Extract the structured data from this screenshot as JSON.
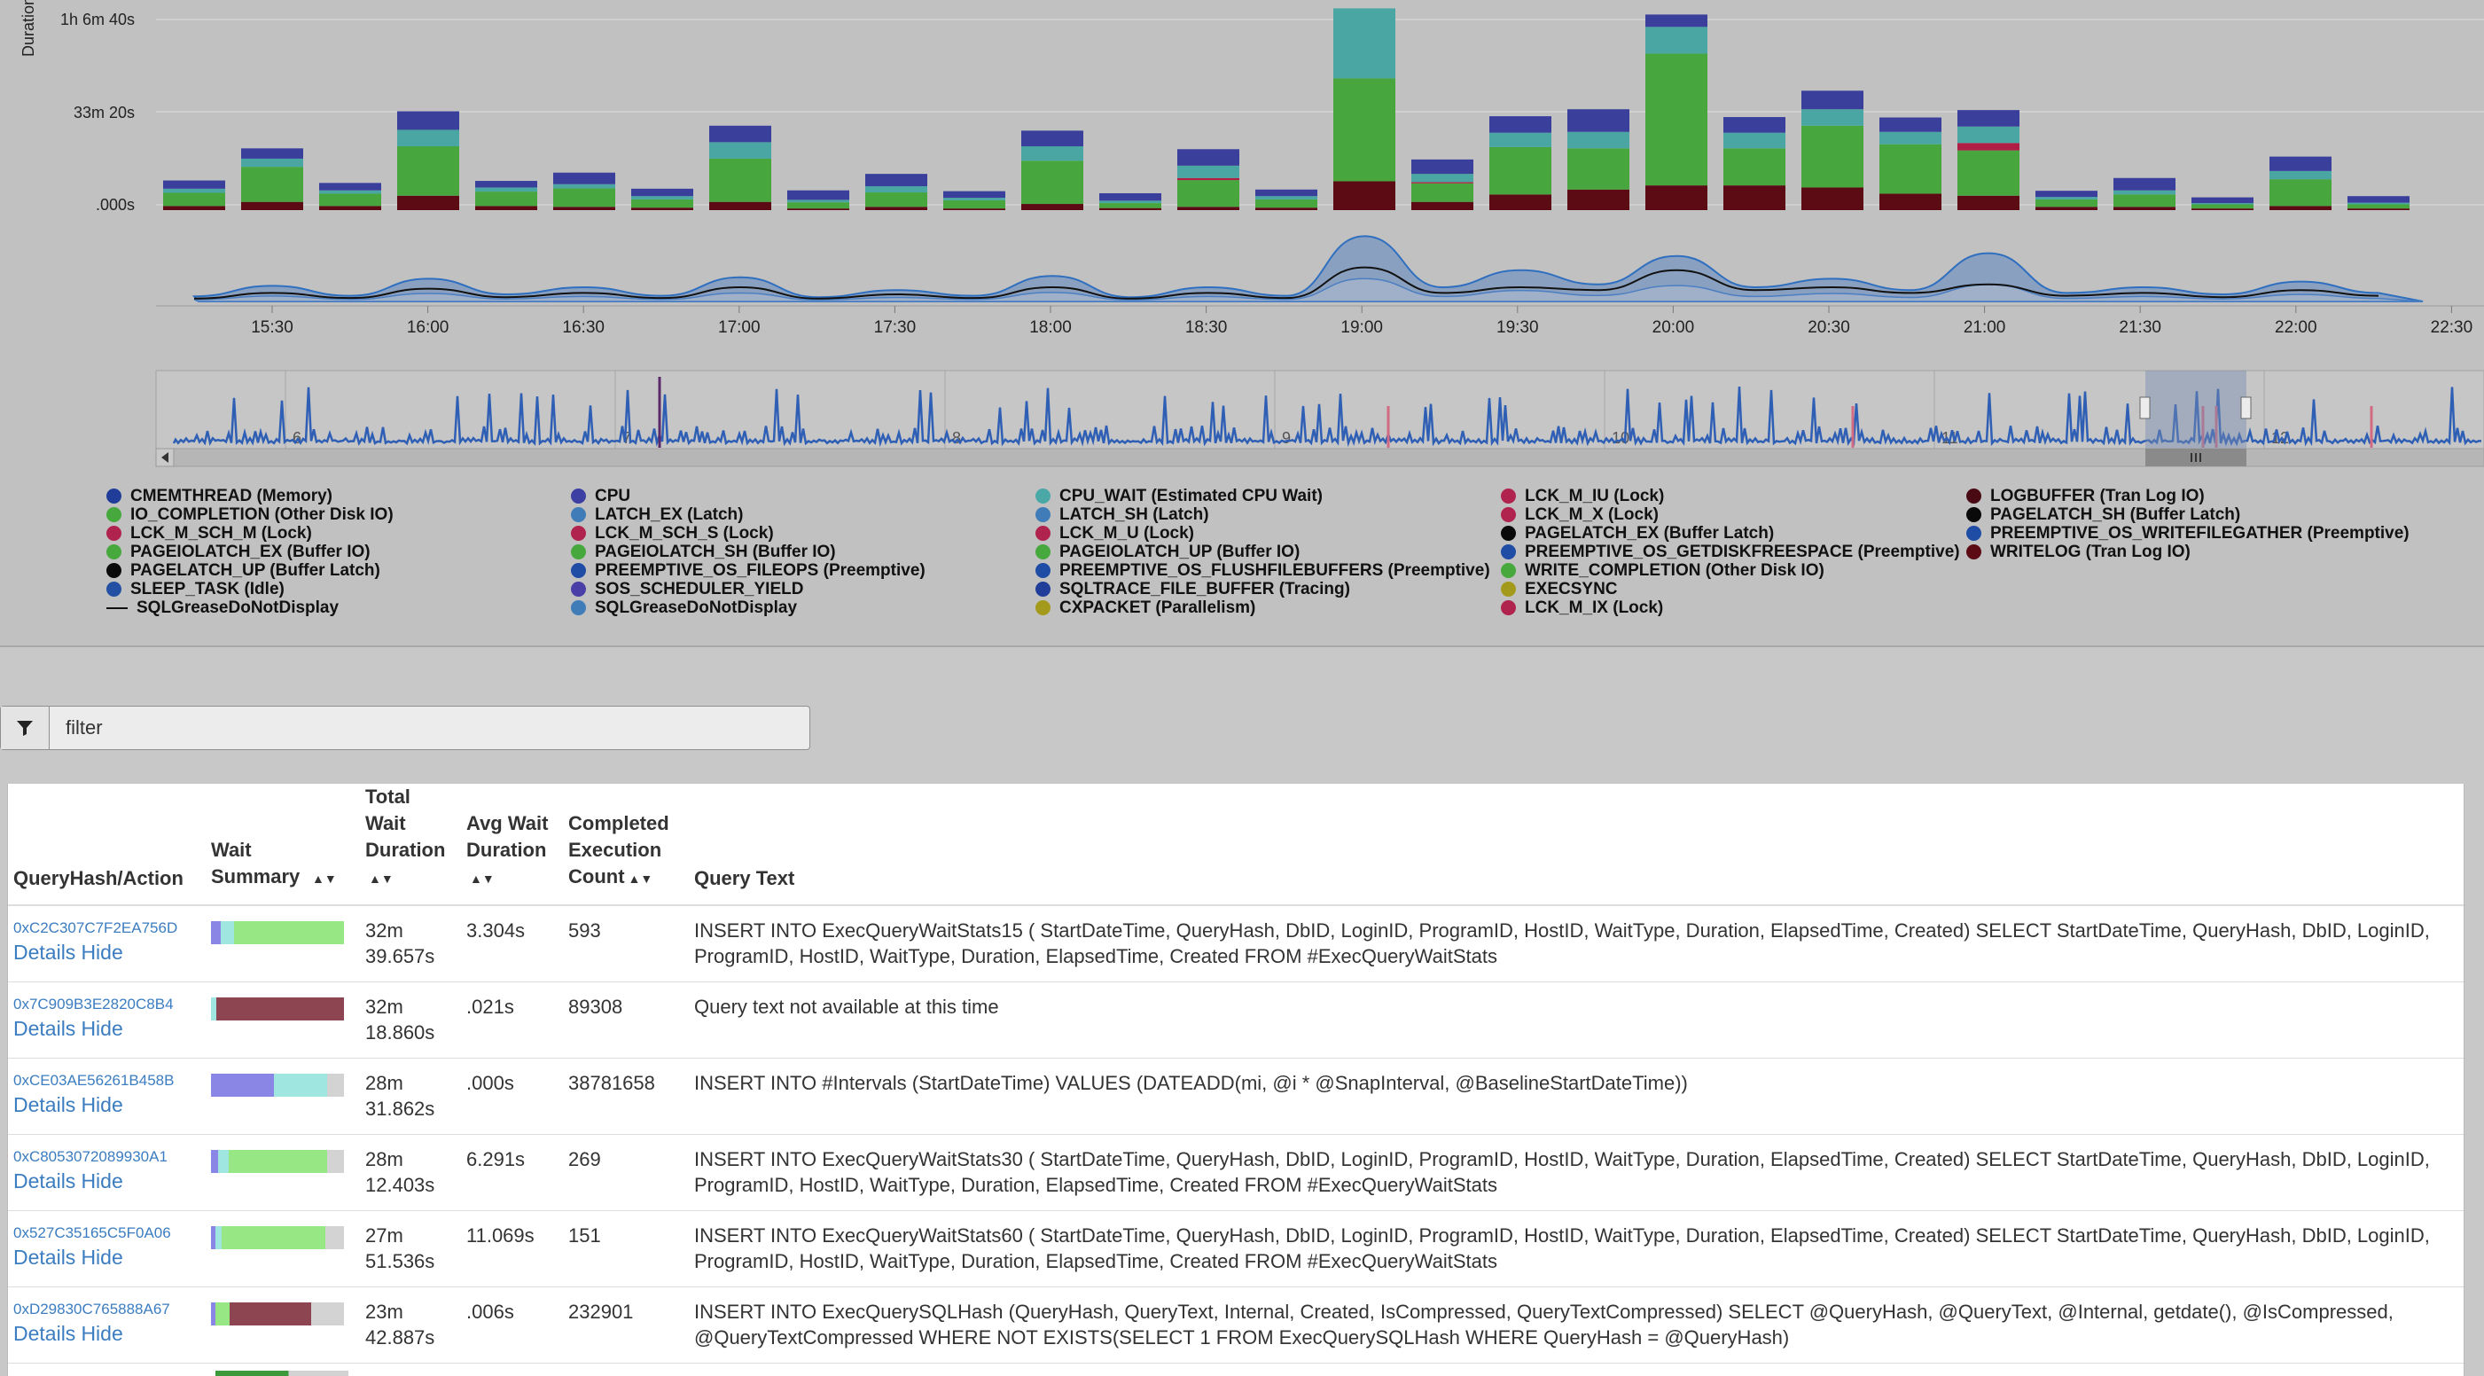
{
  "chart": {
    "y_axis_label": "Duration",
    "y_tick_labels": [
      "1h 6m 40s",
      "33m 20s",
      ".000s"
    ],
    "x_tick_labels": [
      "15:30",
      "16:00",
      "16:30",
      "17:00",
      "17:30",
      "18:00",
      "18:30",
      "19:00",
      "19:30",
      "20:00",
      "20:30",
      "21:00",
      "21:30",
      "22:00",
      "22:30"
    ],
    "navigator_labels": [
      "6",
      "7",
      "8",
      "9",
      "10",
      "11",
      "12"
    ]
  },
  "chart_data": {
    "type": "bar",
    "stacked": true,
    "x_unit": "minutes since 15:30",
    "categories": [
      "15:10",
      "15:25",
      "15:40",
      "15:55",
      "16:10",
      "16:25",
      "16:40",
      "16:55",
      "17:10",
      "17:25",
      "17:40",
      "17:55",
      "18:10",
      "18:25",
      "18:40",
      "18:55",
      "19:10",
      "19:25",
      "19:40",
      "19:55",
      "20:10",
      "20:25",
      "20:40",
      "20:55",
      "21:10",
      "21:25",
      "21:40",
      "21:55",
      "22:10"
    ],
    "ylabel": "Duration",
    "ylim_seconds": [
      0,
      4500
    ],
    "series": [
      {
        "name": "WRITELOG (Tran Log IO)",
        "color": "#5c0a14",
        "values": [
          100,
          200,
          100,
          350,
          100,
          80,
          60,
          200,
          40,
          80,
          40,
          150,
          50,
          80,
          60,
          700,
          200,
          380,
          500,
          600,
          600,
          550,
          400,
          350,
          80,
          80,
          40,
          100,
          40
        ]
      },
      {
        "name": "PAGEIOLATCH_SH (Buffer IO)",
        "color": "#47a63d",
        "values": [
          320,
          850,
          300,
          1200,
          350,
          450,
          200,
          1050,
          150,
          350,
          200,
          1050,
          120,
          650,
          200,
          2500,
          450,
          1150,
          1000,
          3200,
          900,
          1500,
          1200,
          1100,
          180,
          300,
          100,
          650,
          100
        ]
      },
      {
        "name": "LCK_M_X (Lock)",
        "color": "#b01e45",
        "values": [
          0,
          0,
          0,
          0,
          0,
          0,
          0,
          0,
          0,
          0,
          0,
          0,
          0,
          50,
          0,
          0,
          30,
          0,
          0,
          0,
          0,
          0,
          0,
          180,
          0,
          0,
          0,
          0,
          0
        ]
      },
      {
        "name": "CPU_WAIT (Estimated CPU Wait)",
        "color": "#4aa6a3",
        "values": [
          100,
          200,
          80,
          400,
          100,
          100,
          80,
          400,
          60,
          150,
          60,
          350,
          60,
          300,
          80,
          1700,
          200,
          350,
          400,
          650,
          380,
          400,
          300,
          400,
          60,
          100,
          30,
          200,
          40
        ]
      },
      {
        "name": "CPU",
        "color": "#3b3f9c",
        "values": [
          200,
          250,
          180,
          450,
          160,
          280,
          180,
          400,
          230,
          300,
          160,
          380,
          180,
          400,
          160,
          0,
          350,
          400,
          550,
          300,
          380,
          450,
          350,
          400,
          150,
          300,
          140,
          350,
          160
        ]
      }
    ],
    "area_series": [
      {
        "name": "envelope",
        "values": [
          0.18,
          0.55,
          0.2,
          0.8,
          0.25,
          0.5,
          0.2,
          0.85,
          0.15,
          0.4,
          0.2,
          0.9,
          0.15,
          0.5,
          0.2,
          2.3,
          0.5,
          1.1,
          0.6,
          1.6,
          0.5,
          0.8,
          0.4,
          1.7,
          0.3,
          0.5,
          0.25,
          0.7,
          0.3
        ]
      },
      {
        "name": "SQLGreaseDoNotDisplay",
        "values": [
          0.1,
          0.3,
          0.12,
          0.45,
          0.15,
          0.3,
          0.12,
          0.5,
          0.1,
          0.25,
          0.12,
          0.5,
          0.1,
          0.3,
          0.12,
          1.2,
          0.3,
          0.5,
          0.4,
          1.1,
          0.4,
          0.5,
          0.3,
          0.6,
          0.2,
          0.3,
          0.15,
          0.4,
          0.2
        ]
      }
    ]
  },
  "legend": [
    {
      "label": "CMEMTHREAD (Memory)",
      "color": "#1f3d99"
    },
    {
      "label": "IO_COMPLETION (Other Disk IO)",
      "color": "#46a83d"
    },
    {
      "label": "LCK_M_SCH_M (Lock)",
      "color": "#b0234f"
    },
    {
      "label": "PAGEIOLATCH_EX (Buffer IO)",
      "color": "#46a83d"
    },
    {
      "label": "PAGELATCH_UP (Buffer Latch)",
      "color": "#0a0a0a"
    },
    {
      "label": "SLEEP_TASK (Idle)",
      "color": "#2350a3"
    },
    {
      "label": "SQLGreaseDoNotDisplay",
      "color": "line"
    },
    {
      "label": "CPU",
      "color": "#3e3fa3"
    },
    {
      "label": "LATCH_EX (Latch)",
      "color": "#3f7cb8"
    },
    {
      "label": "LCK_M_SCH_S (Lock)",
      "color": "#b0234f"
    },
    {
      "label": "PAGEIOLATCH_SH (Buffer IO)",
      "color": "#46a83d"
    },
    {
      "label": "PREEMPTIVE_OS_FILEOPS (Preemptive)",
      "color": "#1f4da6"
    },
    {
      "label": "SOS_SCHEDULER_YIELD",
      "color": "#4a3fa6"
    },
    {
      "label": "SQLGreaseDoNotDisplay",
      "color": "#3f7cb8"
    },
    {
      "label": "CPU_WAIT (Estimated CPU Wait)",
      "color": "#4aa8a6"
    },
    {
      "label": "LATCH_SH (Latch)",
      "color": "#3f7cb8"
    },
    {
      "label": "LCK_M_U (Lock)",
      "color": "#b0234f"
    },
    {
      "label": "PAGEIOLATCH_UP (Buffer IO)",
      "color": "#46a83d"
    },
    {
      "label": "PREEMPTIVE_OS_FLUSHFILEBUFFERS (Preemptive)",
      "color": "#1f4da6"
    },
    {
      "label": "SQLTRACE_FILE_BUFFER (Tracing)",
      "color": "#1f3d99"
    },
    {
      "label": "CXPACKET (Parallelism)",
      "color": "#a39a1c"
    },
    {
      "label": "LCK_M_IU (Lock)",
      "color": "#b0234f"
    },
    {
      "label": "LCK_M_X (Lock)",
      "color": "#b0234f"
    },
    {
      "label": "PAGELATCH_EX (Buffer Latch)",
      "color": "#0a0a0a"
    },
    {
      "label": "PREEMPTIVE_OS_GETDISKFREESPACE (Preemptive)",
      "color": "#1f4da6"
    },
    {
      "label": "WRITE_COMPLETION (Other Disk IO)",
      "color": "#46a83d"
    },
    {
      "label": "EXECSYNC",
      "color": "#a39a1c"
    },
    {
      "label": "LCK_M_IX (Lock)",
      "color": "#b0234f"
    },
    {
      "label": "LOGBUFFER (Tran Log IO)",
      "color": "#4a0a14"
    },
    {
      "label": "PAGELATCH_SH (Buffer Latch)",
      "color": "#0a0a0a"
    },
    {
      "label": "PREEMPTIVE_OS_WRITEFILEGATHER (Preemptive)",
      "color": "#1f4da6"
    },
    {
      "label": "WRITELOG (Tran Log IO)",
      "color": "#5c0a14"
    }
  ],
  "filter": {
    "placeholder": "filter"
  },
  "table": {
    "headers": {
      "hash": "QueryHash/Action",
      "wait_summary": "Wait Summary",
      "total_wait": "Total Wait Duration",
      "avg_wait": "Avg Wait Duration",
      "completed": "Completed Execution Count",
      "query_text": "Query Text"
    },
    "rows": [
      {
        "hash": "0xC2C307C7F2EA756D",
        "details": "Details",
        "hide": "Hide",
        "total": "32m 39.657s",
        "avg": "3.304s",
        "count": "593",
        "text": "INSERT INTO ExecQueryWaitStats15 ( StartDateTime, QueryHash, DbID, LoginID, ProgramID, HostID, WaitType, Duration, ElapsedTime, Created) SELECT StartDateTime, QueryHash, DbID, LoginID, ProgramID, HostID, WaitType, Duration, ElapsedTime, Created FROM #ExecQueryWaitStats",
        "summary": [
          {
            "color": "#8a86e6",
            "pct": 7
          },
          {
            "color": "#9fe6e0",
            "pct": 10
          },
          {
            "color": "#97e885",
            "pct": 83
          }
        ]
      },
      {
        "hash": "0x7C909B3E2820C8B4",
        "details": "Details",
        "hide": "Hide",
        "total": "32m 18.860s",
        "avg": ".021s",
        "count": "89308",
        "text": "Query text not available at this time",
        "summary": [
          {
            "color": "#9fe6e0",
            "pct": 4
          },
          {
            "color": "#8e4552",
            "pct": 96
          }
        ]
      },
      {
        "hash": "0xCE03AE56261B458B",
        "details": "Details",
        "hide": "Hide",
        "total": "28m 31.862s",
        "avg": ".000s",
        "count": "38781658",
        "text": "INSERT INTO #Intervals (StartDateTime) VALUES (DATEADD(mi, @i * @SnapInterval, @BaselineStartDateTime))",
        "summary": [
          {
            "color": "#8a86e6",
            "pct": 47
          },
          {
            "color": "#9fe6e0",
            "pct": 40
          },
          {
            "color": "#d3d3d3",
            "pct": 13
          }
        ]
      },
      {
        "hash": "0xC8053072089930A1",
        "details": "Details",
        "hide": "Hide",
        "total": "28m 12.403s",
        "avg": "6.291s",
        "count": "269",
        "text": "INSERT INTO ExecQueryWaitStats30 ( StartDateTime, QueryHash, DbID, LoginID, ProgramID, HostID, WaitType, Duration, ElapsedTime, Created) SELECT StartDateTime, QueryHash, DbID, LoginID, ProgramID, HostID, WaitType, Duration, ElapsedTime, Created FROM #ExecQueryWaitStats",
        "summary": [
          {
            "color": "#8a86e6",
            "pct": 5
          },
          {
            "color": "#9fe6e0",
            "pct": 8
          },
          {
            "color": "#97e885",
            "pct": 74
          },
          {
            "color": "#d3d3d3",
            "pct": 13
          }
        ]
      },
      {
        "hash": "0x527C35165C5F0A06",
        "details": "Details",
        "hide": "Hide",
        "total": "27m 51.536s",
        "avg": "11.069s",
        "count": "151",
        "text": "INSERT INTO ExecQueryWaitStats60 ( StartDateTime, QueryHash, DbID, LoginID, ProgramID, HostID, WaitType, Duration, ElapsedTime, Created) SELECT StartDateTime, QueryHash, DbID, LoginID, ProgramID, HostID, WaitType, Duration, ElapsedTime, Created FROM #ExecQueryWaitStats",
        "summary": [
          {
            "color": "#8a86e6",
            "pct": 3
          },
          {
            "color": "#9fe6e0",
            "pct": 5
          },
          {
            "color": "#97e885",
            "pct": 78
          },
          {
            "color": "#d3d3d3",
            "pct": 14
          }
        ]
      },
      {
        "hash": "0xD29830C765888A67",
        "details": "Details",
        "hide": "Hide",
        "total": "23m 42.887s",
        "avg": ".006s",
        "count": "232901",
        "text": "INSERT INTO ExecQuerySQLHash (QueryHash, QueryText, Internal, Created, IsCompressed, QueryTextCompressed) SELECT @QueryHash, @QueryText, @Internal, getdate(), @IsCompressed, @QueryTextCompressed WHERE NOT EXISTS(SELECT 1 FROM ExecQuerySQLHash WHERE QueryHash = @QueryHash)",
        "summary": [
          {
            "color": "#8a86e6",
            "pct": 3
          },
          {
            "color": "#97e885",
            "pct": 11
          },
          {
            "color": "#8e4552",
            "pct": 61
          },
          {
            "color": "#d3d3d3",
            "pct": 25
          }
        ]
      }
    ]
  },
  "colors": {
    "link": "#3b7dc0",
    "panel_bg": "#c1c1c1",
    "grid": "#d8d8d8"
  },
  "icons": {
    "filter": "funnel-icon",
    "sort": "sort-icon",
    "scroll_left": "chevron-left-icon",
    "navigator_grip": "grip-icon"
  }
}
